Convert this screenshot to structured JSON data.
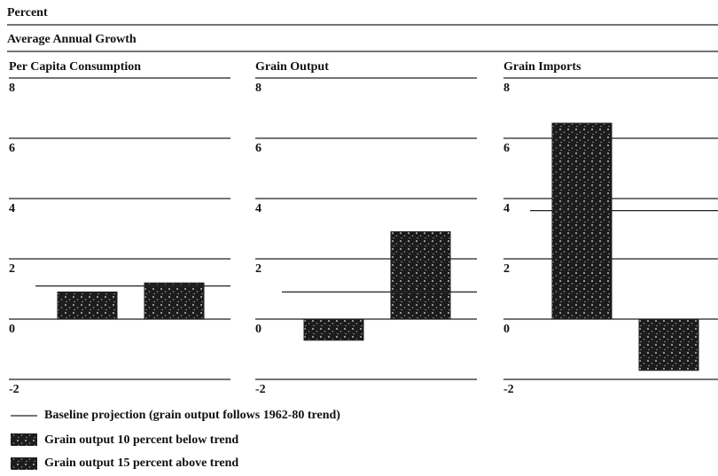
{
  "header": {
    "unit": "Percent",
    "subtitle": "Average Annual Growth"
  },
  "legend": [
    "Baseline projection (grain output follows 1962-80 trend)",
    "Grain output 10 percent below trend",
    "Grain output 15 percent above trend"
  ],
  "color": "#1c1c1c",
  "chart_data": [
    {
      "type": "bar",
      "title": "Per Capita Consumption",
      "categories": [
        null,
        null
      ],
      "values": [
        0.9,
        1.2
      ],
      "baseline": 1.1,
      "ylim": [
        -2,
        8
      ],
      "yticks": [
        -2,
        0,
        2,
        4,
        6,
        8
      ],
      "grid": true
    },
    {
      "type": "bar",
      "title": "Grain Output",
      "categories": [
        null,
        null
      ],
      "values": [
        -0.7,
        2.9
      ],
      "baseline": 0.9,
      "ylim": [
        -2,
        8
      ],
      "yticks": [
        -2,
        0,
        2,
        4,
        6,
        8
      ],
      "grid": true
    },
    {
      "type": "bar",
      "title": "Grain Imports",
      "categories": [
        null,
        null
      ],
      "values": [
        6.5,
        -1.7
      ],
      "baseline": 3.6,
      "ylim": [
        -2,
        8
      ],
      "yticks": [
        -2,
        0,
        2,
        4,
        6,
        8
      ],
      "grid": true
    }
  ]
}
